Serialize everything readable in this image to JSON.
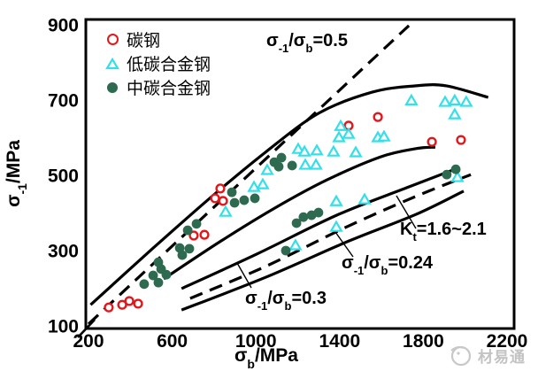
{
  "chart_data": {
    "type": "scatter",
    "xlabel_parts": {
      "s1": "σ",
      "sub": "b",
      "s2": "/MPa"
    },
    "ylabel_parts": {
      "s1": "σ",
      "sub": "-1",
      "s2": "/MPa"
    },
    "xlim": [
      200,
      2200
    ],
    "ylim": [
      100,
      900
    ],
    "xticks": [
      200,
      600,
      1000,
      1400,
      1800,
      2200
    ],
    "yticks": [
      900,
      700,
      500,
      300,
      100
    ],
    "grid": false,
    "legend_position": "upper-left-inside",
    "series": [
      {
        "name": "carbon-steel",
        "label": "碳钢",
        "marker": "open-circle",
        "color": "#e3171b",
        "points": [
          [
            297,
            149
          ],
          [
            361,
            156
          ],
          [
            395,
            166
          ],
          [
            437,
            159
          ],
          [
            703,
            340
          ],
          [
            754,
            342
          ],
          [
            805,
            439
          ],
          [
            830,
            465
          ],
          [
            843,
            432
          ],
          [
            1443,
            632
          ],
          [
            1583,
            655
          ],
          [
            1841,
            589
          ],
          [
            1980,
            594
          ]
        ]
      },
      {
        "name": "low-carbon-alloy-steel",
        "label": "低碳合金钢",
        "marker": "open-triangle",
        "color": "#35dfe8",
        "points": [
          [
            855,
            401
          ],
          [
            991,
            467
          ],
          [
            1033,
            474
          ],
          [
            1054,
            512
          ],
          [
            1189,
            312
          ],
          [
            1236,
            526
          ],
          [
            1287,
            526
          ],
          [
            1202,
            568
          ],
          [
            1232,
            561
          ],
          [
            1291,
            564
          ],
          [
            1371,
            561
          ],
          [
            1477,
            559
          ],
          [
            1384,
            429
          ],
          [
            1519,
            434
          ],
          [
            1384,
            361
          ],
          [
            1405,
            629
          ],
          [
            1397,
            599
          ],
          [
            1443,
            608
          ],
          [
            1583,
            599
          ],
          [
            1612,
            601
          ],
          [
            1743,
            697
          ],
          [
            1904,
            693
          ],
          [
            1950,
            697
          ],
          [
            2005,
            693
          ],
          [
            1950,
            660
          ],
          [
            1963,
            493
          ]
        ]
      },
      {
        "name": "medium-carbon-alloy-steel",
        "label": "中碳合金钢",
        "marker": "filled-circle",
        "color": "#2d6a50",
        "points": [
          [
            466,
            211
          ],
          [
            509,
            234
          ],
          [
            534,
            215
          ],
          [
            534,
            269
          ],
          [
            547,
            251
          ],
          [
            572,
            236
          ],
          [
            636,
            307
          ],
          [
            648,
            288
          ],
          [
            682,
            305
          ],
          [
            674,
            354
          ],
          [
            716,
            371
          ],
          [
            885,
            455
          ],
          [
            898,
            427
          ],
          [
            944,
            434
          ],
          [
            995,
            439
          ],
          [
            1088,
            535
          ],
          [
            1122,
            547
          ],
          [
            1109,
            523
          ],
          [
            1173,
            526
          ],
          [
            1143,
            300
          ],
          [
            1194,
            373
          ],
          [
            1227,
            389
          ],
          [
            1266,
            394
          ],
          [
            1299,
            401
          ],
          [
            1912,
            502
          ],
          [
            1955,
            516
          ]
        ]
      }
    ],
    "reference_lines": [
      {
        "name": "ratio-0.5-line",
        "style": "dashed",
        "points": [
          [
            200,
            105
          ],
          [
            1731,
            898
          ]
        ]
      },
      {
        "name": "upper-bound-curve",
        "style": "solid",
        "points": [
          [
            210,
            156
          ],
          [
            500,
            302
          ],
          [
            790,
            444
          ],
          [
            1045,
            561
          ],
          [
            1300,
            665
          ],
          [
            1555,
            721
          ],
          [
            1765,
            738
          ],
          [
            1910,
            738
          ],
          [
            2110,
            707
          ]
        ]
      },
      {
        "name": "lower-bound-curve",
        "style": "solid",
        "points": [
          [
            560,
            225
          ],
          [
            835,
            326
          ],
          [
            1090,
            413
          ],
          [
            1340,
            488
          ],
          [
            1595,
            549
          ],
          [
            1765,
            571
          ],
          [
            1857,
            575
          ]
        ]
      },
      {
        "name": "notched-band-upper",
        "style": "solid",
        "points": [
          [
            645,
            199
          ],
          [
            1005,
            291
          ],
          [
            1385,
            394
          ],
          [
            1720,
            467
          ],
          [
            1950,
            516
          ]
        ]
      },
      {
        "name": "notched-band-center",
        "style": "dashed",
        "points": [
          [
            686,
            173
          ],
          [
            1046,
            258
          ],
          [
            1426,
            361
          ],
          [
            1764,
            444
          ],
          [
            2027,
            502
          ]
        ]
      },
      {
        "name": "notched-band-lower",
        "style": "solid",
        "points": [
          [
            645,
            142
          ],
          [
            1046,
            229
          ],
          [
            1447,
            326
          ],
          [
            1764,
            396
          ],
          [
            1993,
            458
          ]
        ]
      }
    ],
    "annotations": [
      {
        "name": "ratio-0.5-label",
        "s1": "σ",
        "sub1": "-1",
        "s2": "/σ",
        "sub2": "b",
        "s3": "=0.5"
      },
      {
        "name": "kt-label",
        "s1": "K",
        "sub1": "t",
        "s2": "",
        "sub2": "",
        "s3": "=1.6~2.1"
      },
      {
        "name": "ratio-0.24-label",
        "s1": "σ",
        "sub1": "-1",
        "s2": "/σ",
        "sub2": "b",
        "s3": "=0.24"
      },
      {
        "name": "ratio-0.3-label",
        "s1": "σ",
        "sub1": "-1",
        "s2": "/σ",
        "sub2": "b",
        "s3": "=0.3"
      }
    ]
  },
  "watermark": {
    "text": "材易通"
  }
}
